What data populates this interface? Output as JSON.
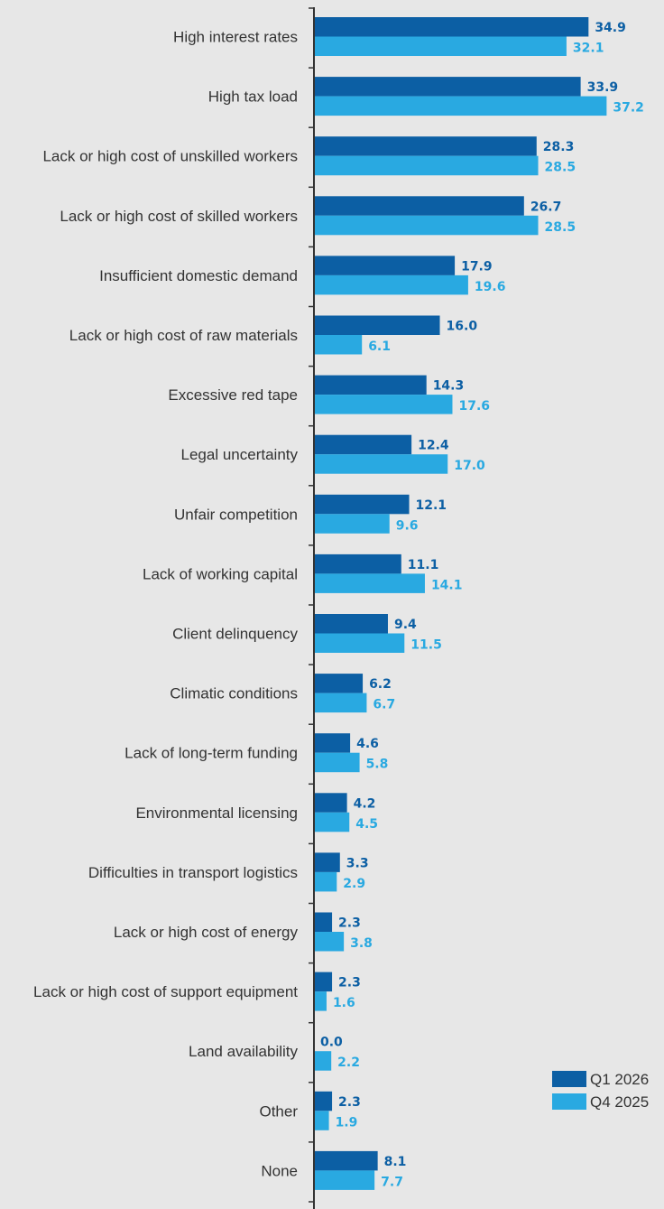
{
  "chart_data": {
    "type": "bar",
    "orientation": "horizontal",
    "categories": [
      "High interest rates",
      "High tax load",
      "Lack or high cost of unskilled workers",
      "Lack or high cost of skilled workers",
      "Insufficient domestic demand",
      "Lack or high cost of raw materials",
      "Excessive red tape",
      "Legal uncertainty",
      "Unfair competition",
      "Lack of working capital",
      "Client delinquency",
      "Climatic conditions",
      "Lack of long-term funding",
      "Environmental licensing",
      "Difficulties in transport logistics",
      "Lack or high cost of energy",
      "Lack or high cost of support equipment",
      "Land availability",
      "Other",
      "None"
    ],
    "series": [
      {
        "name": "Q1 2026",
        "color": "#0c5fa4",
        "values": [
          34.9,
          33.9,
          28.3,
          26.7,
          17.9,
          16.0,
          14.3,
          12.4,
          12.1,
          11.1,
          9.4,
          6.2,
          4.6,
          4.2,
          3.3,
          2.3,
          2.3,
          0.0,
          2.3,
          8.1
        ],
        "labels": [
          "34.9",
          "33.9",
          "28.3",
          "26.7",
          "17.9",
          "16.0",
          "14.3",
          "12.4",
          "12.1",
          "11.1",
          "9.4",
          "6.2",
          "4.6",
          "4.2",
          "3.3",
          "2.3",
          "2.3",
          "0.0",
          "2.3",
          "8.1"
        ]
      },
      {
        "name": "Q4 2025",
        "color": "#29a9e1",
        "values": [
          32.1,
          37.2,
          28.5,
          28.5,
          19.6,
          6.1,
          17.6,
          17.0,
          9.6,
          14.1,
          11.5,
          6.7,
          5.8,
          4.5,
          2.9,
          3.8,
          1.6,
          2.2,
          1.9,
          7.7
        ],
        "labels": [
          "32.1",
          "37.2",
          "28.5",
          "28.5",
          "19.6",
          "6.1",
          "17.6",
          "17.0",
          "9.6",
          "14.1",
          "11.5",
          "6.7",
          "5.8",
          "4.5",
          "2.9",
          "3.8",
          "1.6",
          "2.2",
          "1.9",
          "7.7"
        ]
      }
    ],
    "legend_position": "bottom-right",
    "axis_color": "#333333",
    "grid": false
  }
}
